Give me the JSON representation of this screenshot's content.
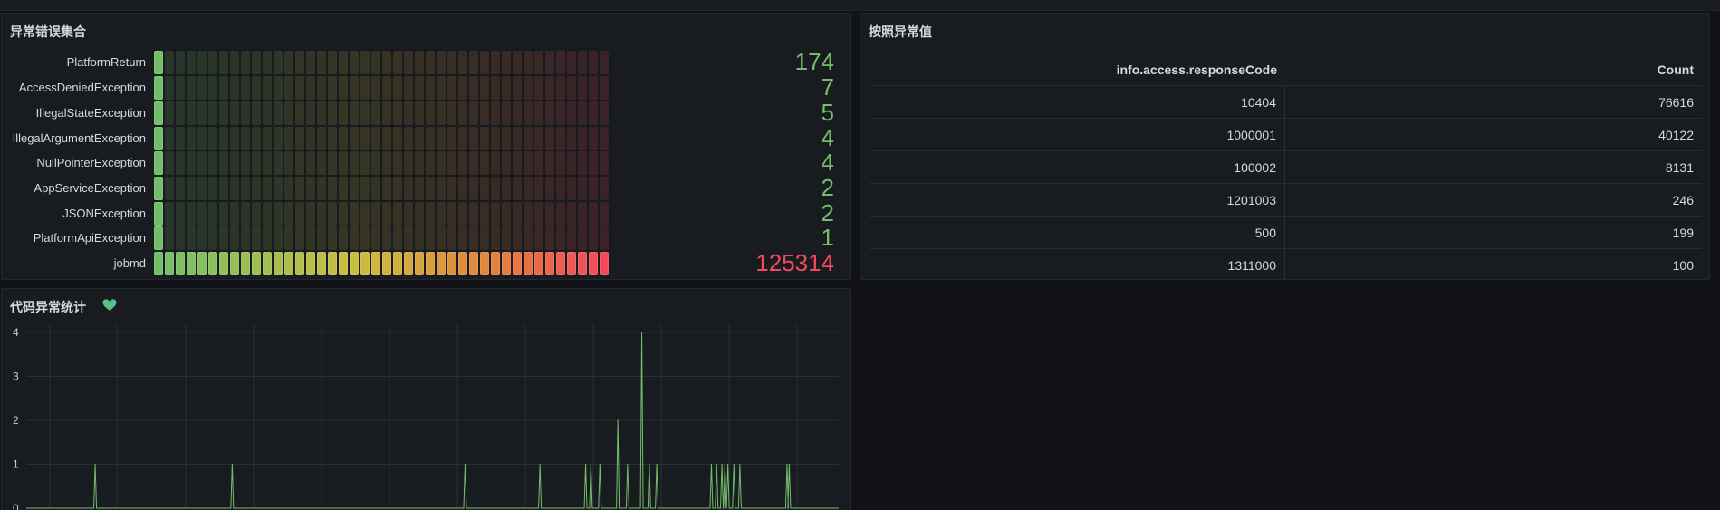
{
  "bargauge": {
    "title": "异常错误集合",
    "rows": [
      {
        "label": "PlatformReturn",
        "value": "174",
        "level": 0.03,
        "color": "#73bf69"
      },
      {
        "label": "AccessDeniedException",
        "value": "7",
        "level": 0.02,
        "color": "#73bf69"
      },
      {
        "label": "IllegalStateException",
        "value": "5",
        "level": 0.02,
        "color": "#73bf69"
      },
      {
        "label": "IllegalArgumentException",
        "value": "4",
        "level": 0.02,
        "color": "#73bf69"
      },
      {
        "label": "NullPointerException",
        "value": "4",
        "level": 0.02,
        "color": "#73bf69"
      },
      {
        "label": "AppServiceException",
        "value": "2",
        "level": 0.02,
        "color": "#73bf69"
      },
      {
        "label": "JSONException",
        "value": "2",
        "level": 0.02,
        "color": "#73bf69"
      },
      {
        "label": "PlatformApiException",
        "value": "1",
        "level": 0.02,
        "color": "#73bf69"
      },
      {
        "label": "jobmd",
        "value": "125314",
        "level": 1.0,
        "color": "#f2495c"
      }
    ]
  },
  "table": {
    "title": "按照异常值",
    "columns": [
      "info.access.responseCode",
      "Count"
    ],
    "rows": [
      [
        "10404",
        "76616"
      ],
      [
        "1000001",
        "40122"
      ],
      [
        "100002",
        "8131"
      ],
      [
        "1201003",
        "246"
      ],
      [
        "500",
        "199"
      ],
      [
        "1311000",
        "100"
      ]
    ]
  },
  "timeseries": {
    "title": "代码异常统计",
    "icon": "heart-icon",
    "line_color": "#73bf69",
    "chart_data": {
      "type": "line",
      "ylim": [
        0,
        4
      ],
      "yticks": [
        "0",
        "1",
        "2",
        "3",
        "4"
      ],
      "x_range": [
        0,
        1000
      ],
      "spikes": [
        {
          "x": 92,
          "y": 1
        },
        {
          "x": 275,
          "y": 1
        },
        {
          "x": 586,
          "y": 1
        },
        {
          "x": 686,
          "y": 1
        },
        {
          "x": 747,
          "y": 1
        },
        {
          "x": 754,
          "y": 1
        },
        {
          "x": 766,
          "y": 1
        },
        {
          "x": 790,
          "y": 2
        },
        {
          "x": 803,
          "y": 1
        },
        {
          "x": 822,
          "y": 4
        },
        {
          "x": 832,
          "y": 1
        },
        {
          "x": 842,
          "y": 1
        },
        {
          "x": 915,
          "y": 1
        },
        {
          "x": 922,
          "y": 1
        },
        {
          "x": 929,
          "y": 1
        },
        {
          "x": 933,
          "y": 1
        },
        {
          "x": 937,
          "y": 1
        },
        {
          "x": 945,
          "y": 1
        },
        {
          "x": 953,
          "y": 1
        },
        {
          "x": 1016,
          "y": 1
        },
        {
          "x": 1019,
          "y": 1
        }
      ]
    }
  }
}
